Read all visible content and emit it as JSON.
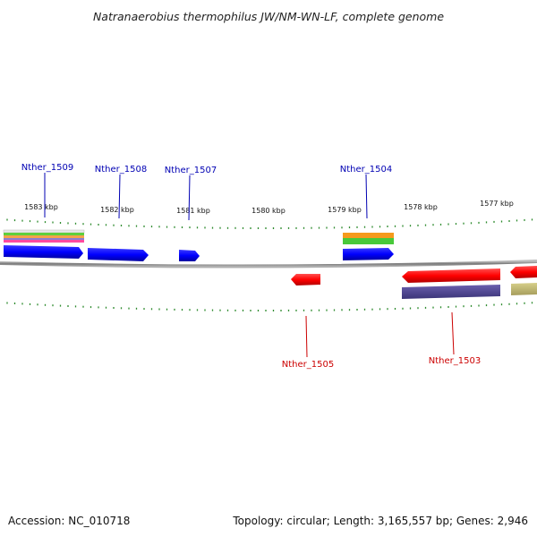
{
  "title": "Natranaerobius thermophilus JW/NM-WN-LF, complete genome",
  "footer": {
    "accession": "Accession: NC_010718",
    "summary": "Topology: circular; Length: 3,165,557 bp; Genes: 2,946"
  },
  "colors": {
    "forward_label": "#0000b3",
    "reverse_label": "#cc0000",
    "tick": "#2e8b2e",
    "backbone": "#8c8c8c",
    "forward_cds": "#0000ff",
    "reverse_cds": "#ff0000"
  },
  "ticks": {
    "major_labels": [
      "1583 kbp",
      "1582 kbp",
      "1581 kbp",
      "1580 kbp",
      "1579 kbp",
      "1578 kbp",
      "1577 kbp"
    ]
  },
  "genes": {
    "forward": [
      "Nther_1509",
      "Nther_1508",
      "Nther_1507",
      "Nther_1504"
    ],
    "reverse": [
      "Nther_1505",
      "Nther_1503"
    ]
  }
}
